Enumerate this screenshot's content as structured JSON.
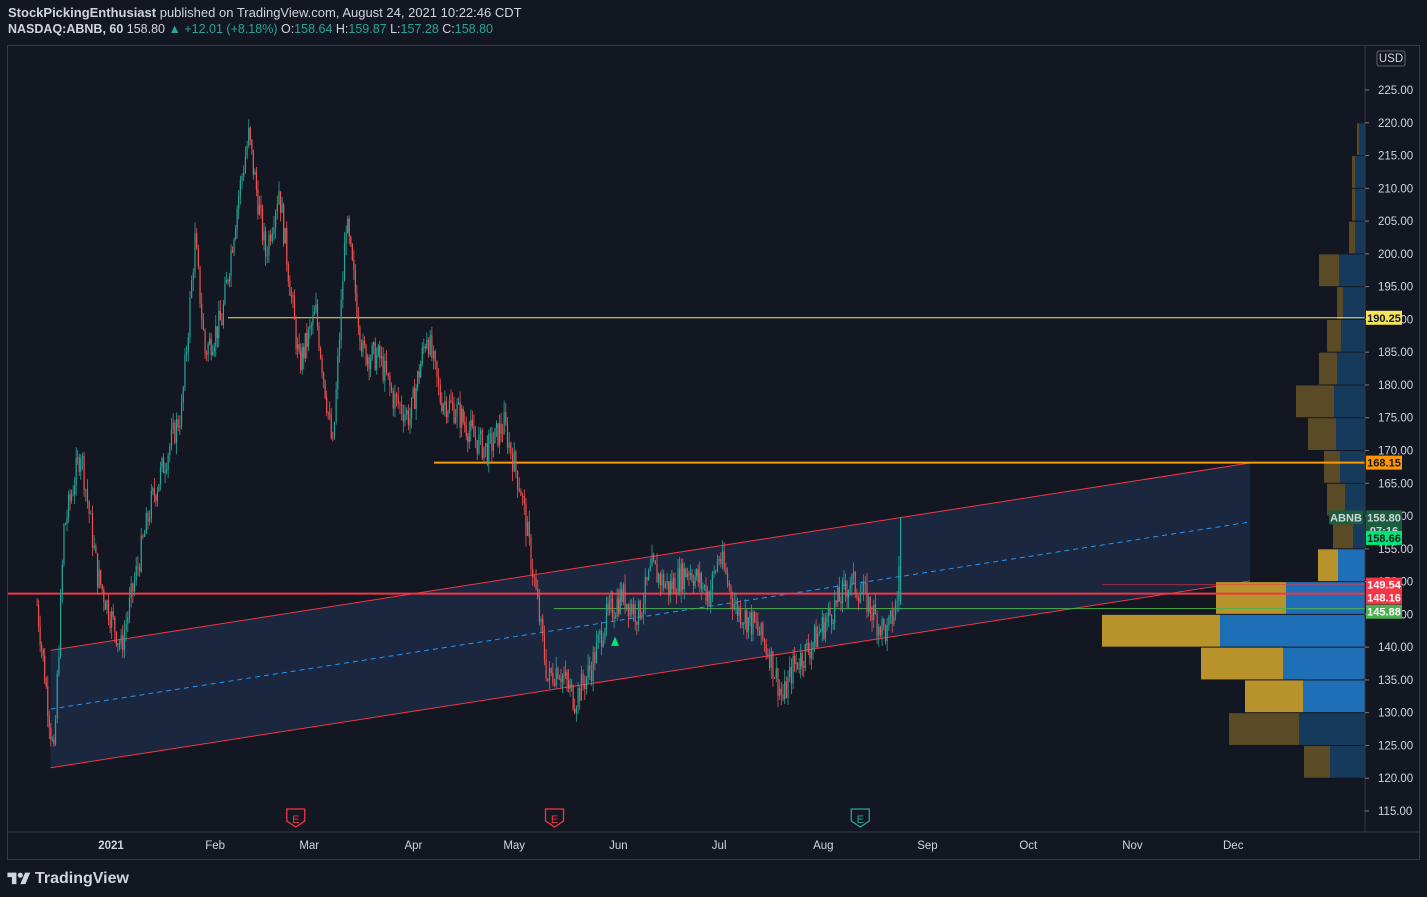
{
  "header": {
    "author": "StockPickingEnthusiast",
    "published": "published on TradingView.com, August 24, 2021 10:22:46 CDT",
    "symbol": "NASDAQ:ABNB, 60",
    "last": "158.80",
    "change": "+12.01 (+8.18%)",
    "open_label": "O:",
    "open": "158.64",
    "high_label": "H:",
    "high": "159.87",
    "low_label": "L:",
    "low": "157.28",
    "close_label": "C:",
    "close": "158.80"
  },
  "footer": {
    "brand": "TradingView"
  },
  "axis": {
    "currency": "USD",
    "price_ticks": [
      "225.00",
      "220.00",
      "215.00",
      "210.00",
      "205.00",
      "200.00",
      "195.00",
      "190.00",
      "185.00",
      "180.00",
      "175.00",
      "170.00",
      "165.00",
      "160.00",
      "155.00",
      "150.00",
      "145.00",
      "140.00",
      "135.00",
      "130.00",
      "125.00",
      "120.00",
      "115.00"
    ],
    "time_ticks": [
      "2021",
      "Feb",
      "Mar",
      "Apr",
      "May",
      "Jun",
      "Jul",
      "Aug",
      "Sep",
      "Oct",
      "Nov",
      "Dec"
    ]
  },
  "price_tags": [
    {
      "label": "190.25",
      "color": "#f5e55a",
      "text_color": "#131722"
    },
    {
      "label": "168.15",
      "color": "#ff9800",
      "text_color": "#131722"
    },
    {
      "label": "158.80",
      "color": "#1b5e3f",
      "text_color": "#d1d4dc"
    },
    {
      "label": "07:16",
      "color": "#1b5e3f",
      "text_color": "#d1d4dc"
    },
    {
      "label": "158.66",
      "color": "#00e676",
      "text_color": "#131722"
    },
    {
      "label": "149.54",
      "color": "#f23645",
      "text_color": "#ffffff"
    },
    {
      "label": "148.16",
      "color": "#f23645",
      "text_color": "#ffffff"
    },
    {
      "label": "145.88",
      "color": "#4caf50",
      "text_color": "#ffffff"
    }
  ],
  "symbol_badge": "ABNB",
  "earnings_markers": [
    {
      "label": "E",
      "color": "#f23645"
    },
    {
      "label": "E",
      "color": "#f23645"
    },
    {
      "label": "E",
      "color": "#26a69a"
    }
  ],
  "chart_data": {
    "type": "candlestick",
    "symbol": "NASDAQ:ABNB",
    "interval": "60",
    "ylim": [
      112,
      228
    ],
    "horizontal_levels": [
      {
        "price": 190.25,
        "color": "#f5e55a"
      },
      {
        "price": 168.15,
        "color": "#ff9800"
      },
      {
        "price": 148.16,
        "color": "#f23645"
      },
      {
        "price": 145.88,
        "color": "#4caf50"
      }
    ],
    "channel": {
      "upper": {
        "from": {
          "date": "2020-12-14",
          "price": 139.5
        },
        "to": {
          "date": "2021-12-06",
          "price": 168.1
        }
      },
      "lower": {
        "from": {
          "date": "2020-12-14",
          "price": 121.6
        },
        "to": {
          "date": "2021-12-06",
          "price": 150.1
        }
      },
      "fill": "#1c2a44",
      "midline_color": "#2196f3"
    },
    "price_path": [
      [
        "2020-12-10",
        146.5
      ],
      [
        "2020-12-15",
        123
      ],
      [
        "2020-12-18",
        158
      ],
      [
        "2020-12-23",
        170
      ],
      [
        "2020-12-28",
        151
      ],
      [
        "2021-01-04",
        140
      ],
      [
        "2021-01-08",
        150
      ],
      [
        "2021-01-13",
        162
      ],
      [
        "2021-01-18",
        170
      ],
      [
        "2021-01-22",
        176
      ],
      [
        "2021-01-26",
        202
      ],
      [
        "2021-01-29",
        185
      ],
      [
        "2021-02-03",
        190
      ],
      [
        "2021-02-08",
        209
      ],
      [
        "2021-02-11",
        218
      ],
      [
        "2021-02-16",
        200
      ],
      [
        "2021-02-20",
        210
      ],
      [
        "2021-02-26",
        183
      ],
      [
        "2021-03-03",
        191
      ],
      [
        "2021-03-08",
        170
      ],
      [
        "2021-03-12",
        205
      ],
      [
        "2021-03-17",
        185
      ],
      [
        "2021-03-22",
        184
      ],
      [
        "2021-03-26",
        178
      ],
      [
        "2021-03-31",
        175
      ],
      [
        "2021-04-05",
        188
      ],
      [
        "2021-04-09",
        178
      ],
      [
        "2021-04-14",
        176
      ],
      [
        "2021-04-19",
        172
      ],
      [
        "2021-04-23",
        170
      ],
      [
        "2021-04-28",
        174
      ],
      [
        "2021-05-03",
        164
      ],
      [
        "2021-05-07",
        150
      ],
      [
        "2021-05-11",
        135
      ],
      [
        "2021-05-14",
        137
      ],
      [
        "2021-05-19",
        132
      ],
      [
        "2021-05-24",
        137
      ],
      [
        "2021-05-28",
        144
      ],
      [
        "2021-06-02",
        148
      ],
      [
        "2021-06-07",
        145
      ],
      [
        "2021-06-11",
        152
      ],
      [
        "2021-06-16",
        149
      ],
      [
        "2021-06-22",
        152
      ],
      [
        "2021-06-28",
        148
      ],
      [
        "2021-07-01",
        154
      ],
      [
        "2021-07-06",
        146
      ],
      [
        "2021-07-12",
        143
      ],
      [
        "2021-07-16",
        139
      ],
      [
        "2021-07-20",
        132
      ],
      [
        "2021-07-23",
        137
      ],
      [
        "2021-07-28",
        140
      ],
      [
        "2021-08-03",
        145
      ],
      [
        "2021-08-09",
        150
      ],
      [
        "2021-08-13",
        148
      ],
      [
        "2021-08-17",
        144
      ],
      [
        "2021-08-20",
        142
      ],
      [
        "2021-08-23",
        147
      ],
      [
        "2021-08-24",
        158.8
      ]
    ],
    "volume_profile": [
      {
        "price": 217.5,
        "up": 2,
        "down": 6
      },
      {
        "price": 212.5,
        "up": 3,
        "down": 10
      },
      {
        "price": 207.5,
        "up": 3,
        "down": 10
      },
      {
        "price": 202.5,
        "up": 6,
        "down": 10
      },
      {
        "price": 197.5,
        "up": 20,
        "down": 26
      },
      {
        "price": 192.5,
        "up": 6,
        "down": 22
      },
      {
        "price": 187.5,
        "up": 14,
        "down": 24
      },
      {
        "price": 182.5,
        "up": 18,
        "down": 28
      },
      {
        "price": 177.5,
        "up": 38,
        "down": 31
      },
      {
        "price": 172.5,
        "up": 28,
        "down": 29
      },
      {
        "price": 167.5,
        "up": 16,
        "down": 25
      },
      {
        "price": 162.5,
        "up": 18,
        "down": 20
      },
      {
        "price": 157.5,
        "up": 20,
        "down": 12
      },
      {
        "price": 152.5,
        "up": 20,
        "down": 27
      },
      {
        "price": 147.5,
        "up": 70,
        "down": 79
      },
      {
        "price": 142.5,
        "up": 118,
        "down": 145
      },
      {
        "price": 137.5,
        "up": 82,
        "down": 82
      },
      {
        "price": 132.5,
        "up": 58,
        "down": 62
      },
      {
        "price": 127.5,
        "up": 70,
        "down": 66
      },
      {
        "price": 122.5,
        "up": 26,
        "down": 35
      }
    ]
  }
}
